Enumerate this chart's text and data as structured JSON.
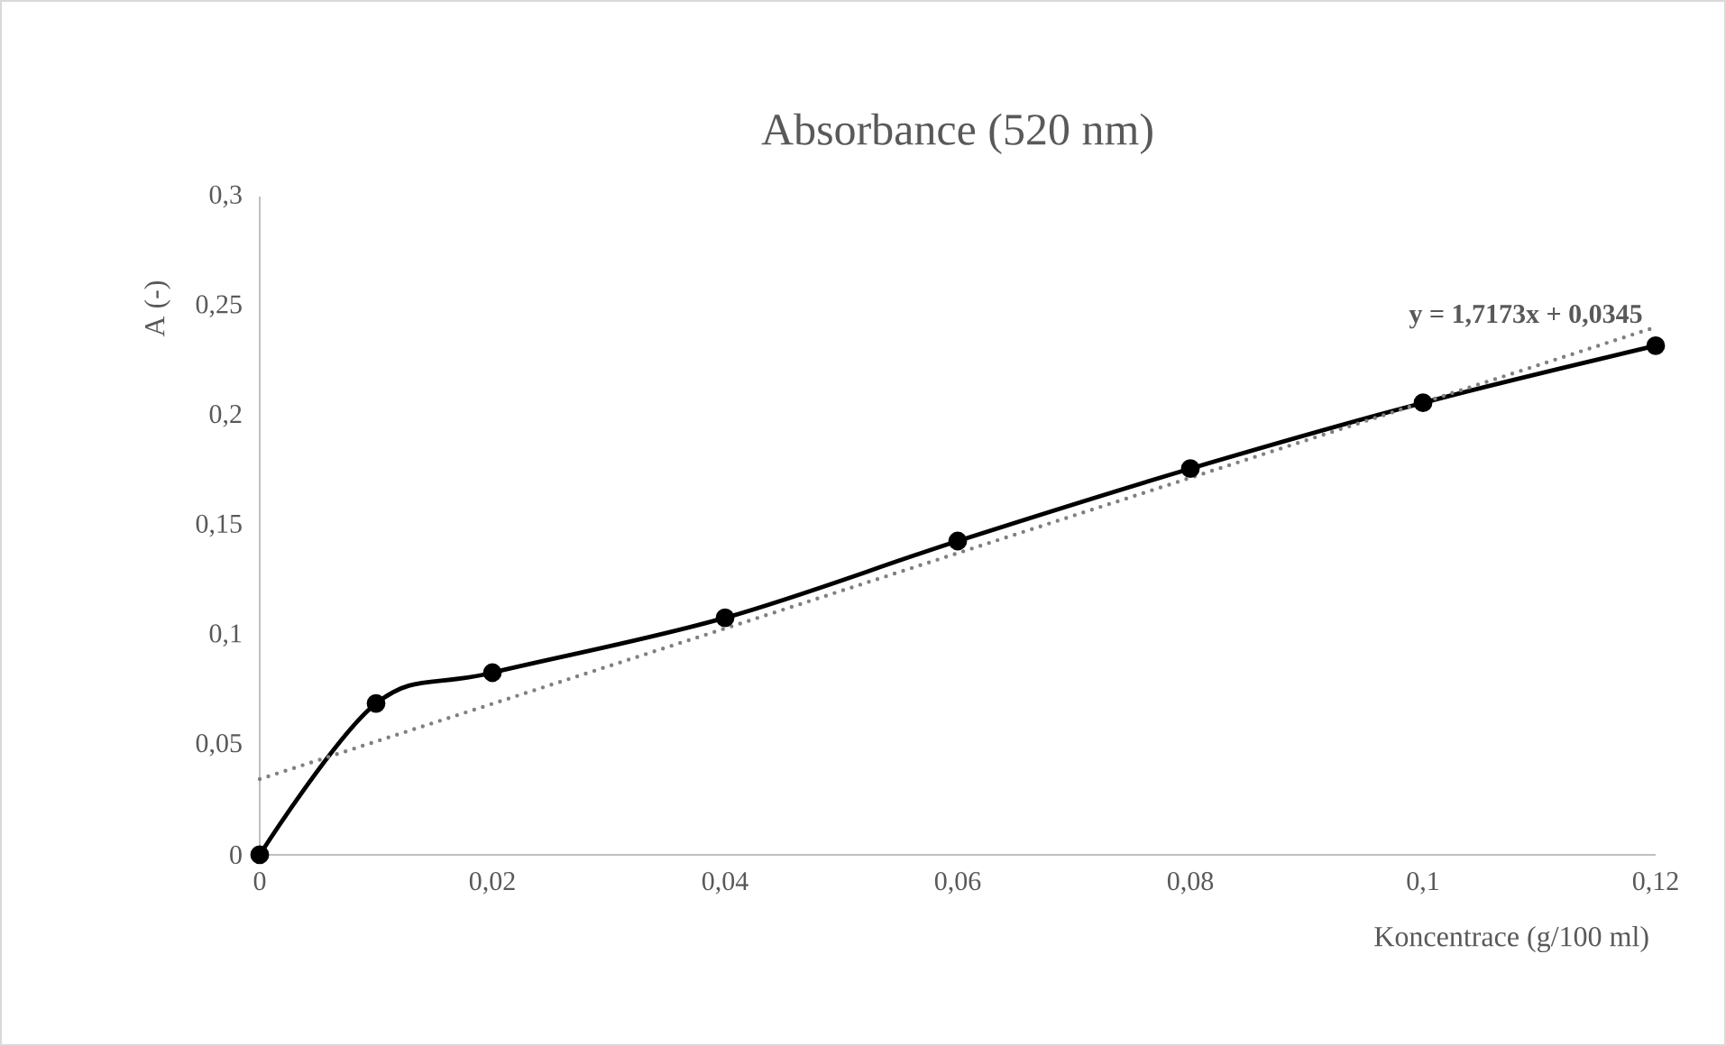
{
  "chart_data": {
    "type": "line",
    "title": "Absorbance (520 nm)",
    "xlabel": "Koncentrace (g/100 ml)",
    "ylabel": "A (-)",
    "x": [
      0,
      0.01,
      0.02,
      0.04,
      0.06,
      0.08,
      0.1,
      0.12
    ],
    "series": [
      {
        "color": "#000000",
        "values": [
          0,
          0.069,
          0.083,
          0.108,
          0.143,
          0.176,
          0.206,
          0.232
        ],
        "marker": "circle",
        "line_style": "solid"
      },
      {
        "type": "line",
        "color": "#808080",
        "x": [
          0,
          0.12
        ],
        "values": [
          0.0345,
          0.2405
        ],
        "marker": "none",
        "line_style": "dotted"
      }
    ],
    "annotations": [
      "y = 1,7173x + 0,0345"
    ],
    "xlim": [
      0,
      0.12
    ],
    "ylim": [
      0,
      0.3
    ],
    "xticks": [
      0,
      {
        "value": 0.02,
        "label": "0,02"
      },
      {
        "value": 0.04,
        "label": "0,04"
      },
      {
        "value": 0.06,
        "label": "0,06"
      },
      {
        "value": 0.08,
        "label": "0,08"
      },
      {
        "value": 0.1,
        "label": "0,1"
      },
      {
        "value": 0.12,
        "label": "0,12"
      }
    ],
    "yticks": [
      0,
      {
        "value": 0.05,
        "label": "0,05"
      },
      {
        "value": 0.1,
        "label": "0,1"
      },
      {
        "value": 0.15,
        "label": "0,15"
      },
      {
        "value": 0.2,
        "label": "0,2"
      },
      {
        "value": 0.25,
        "label": "0,25"
      },
      {
        "value": 0.3,
        "label": "0,3"
      }
    ]
  }
}
